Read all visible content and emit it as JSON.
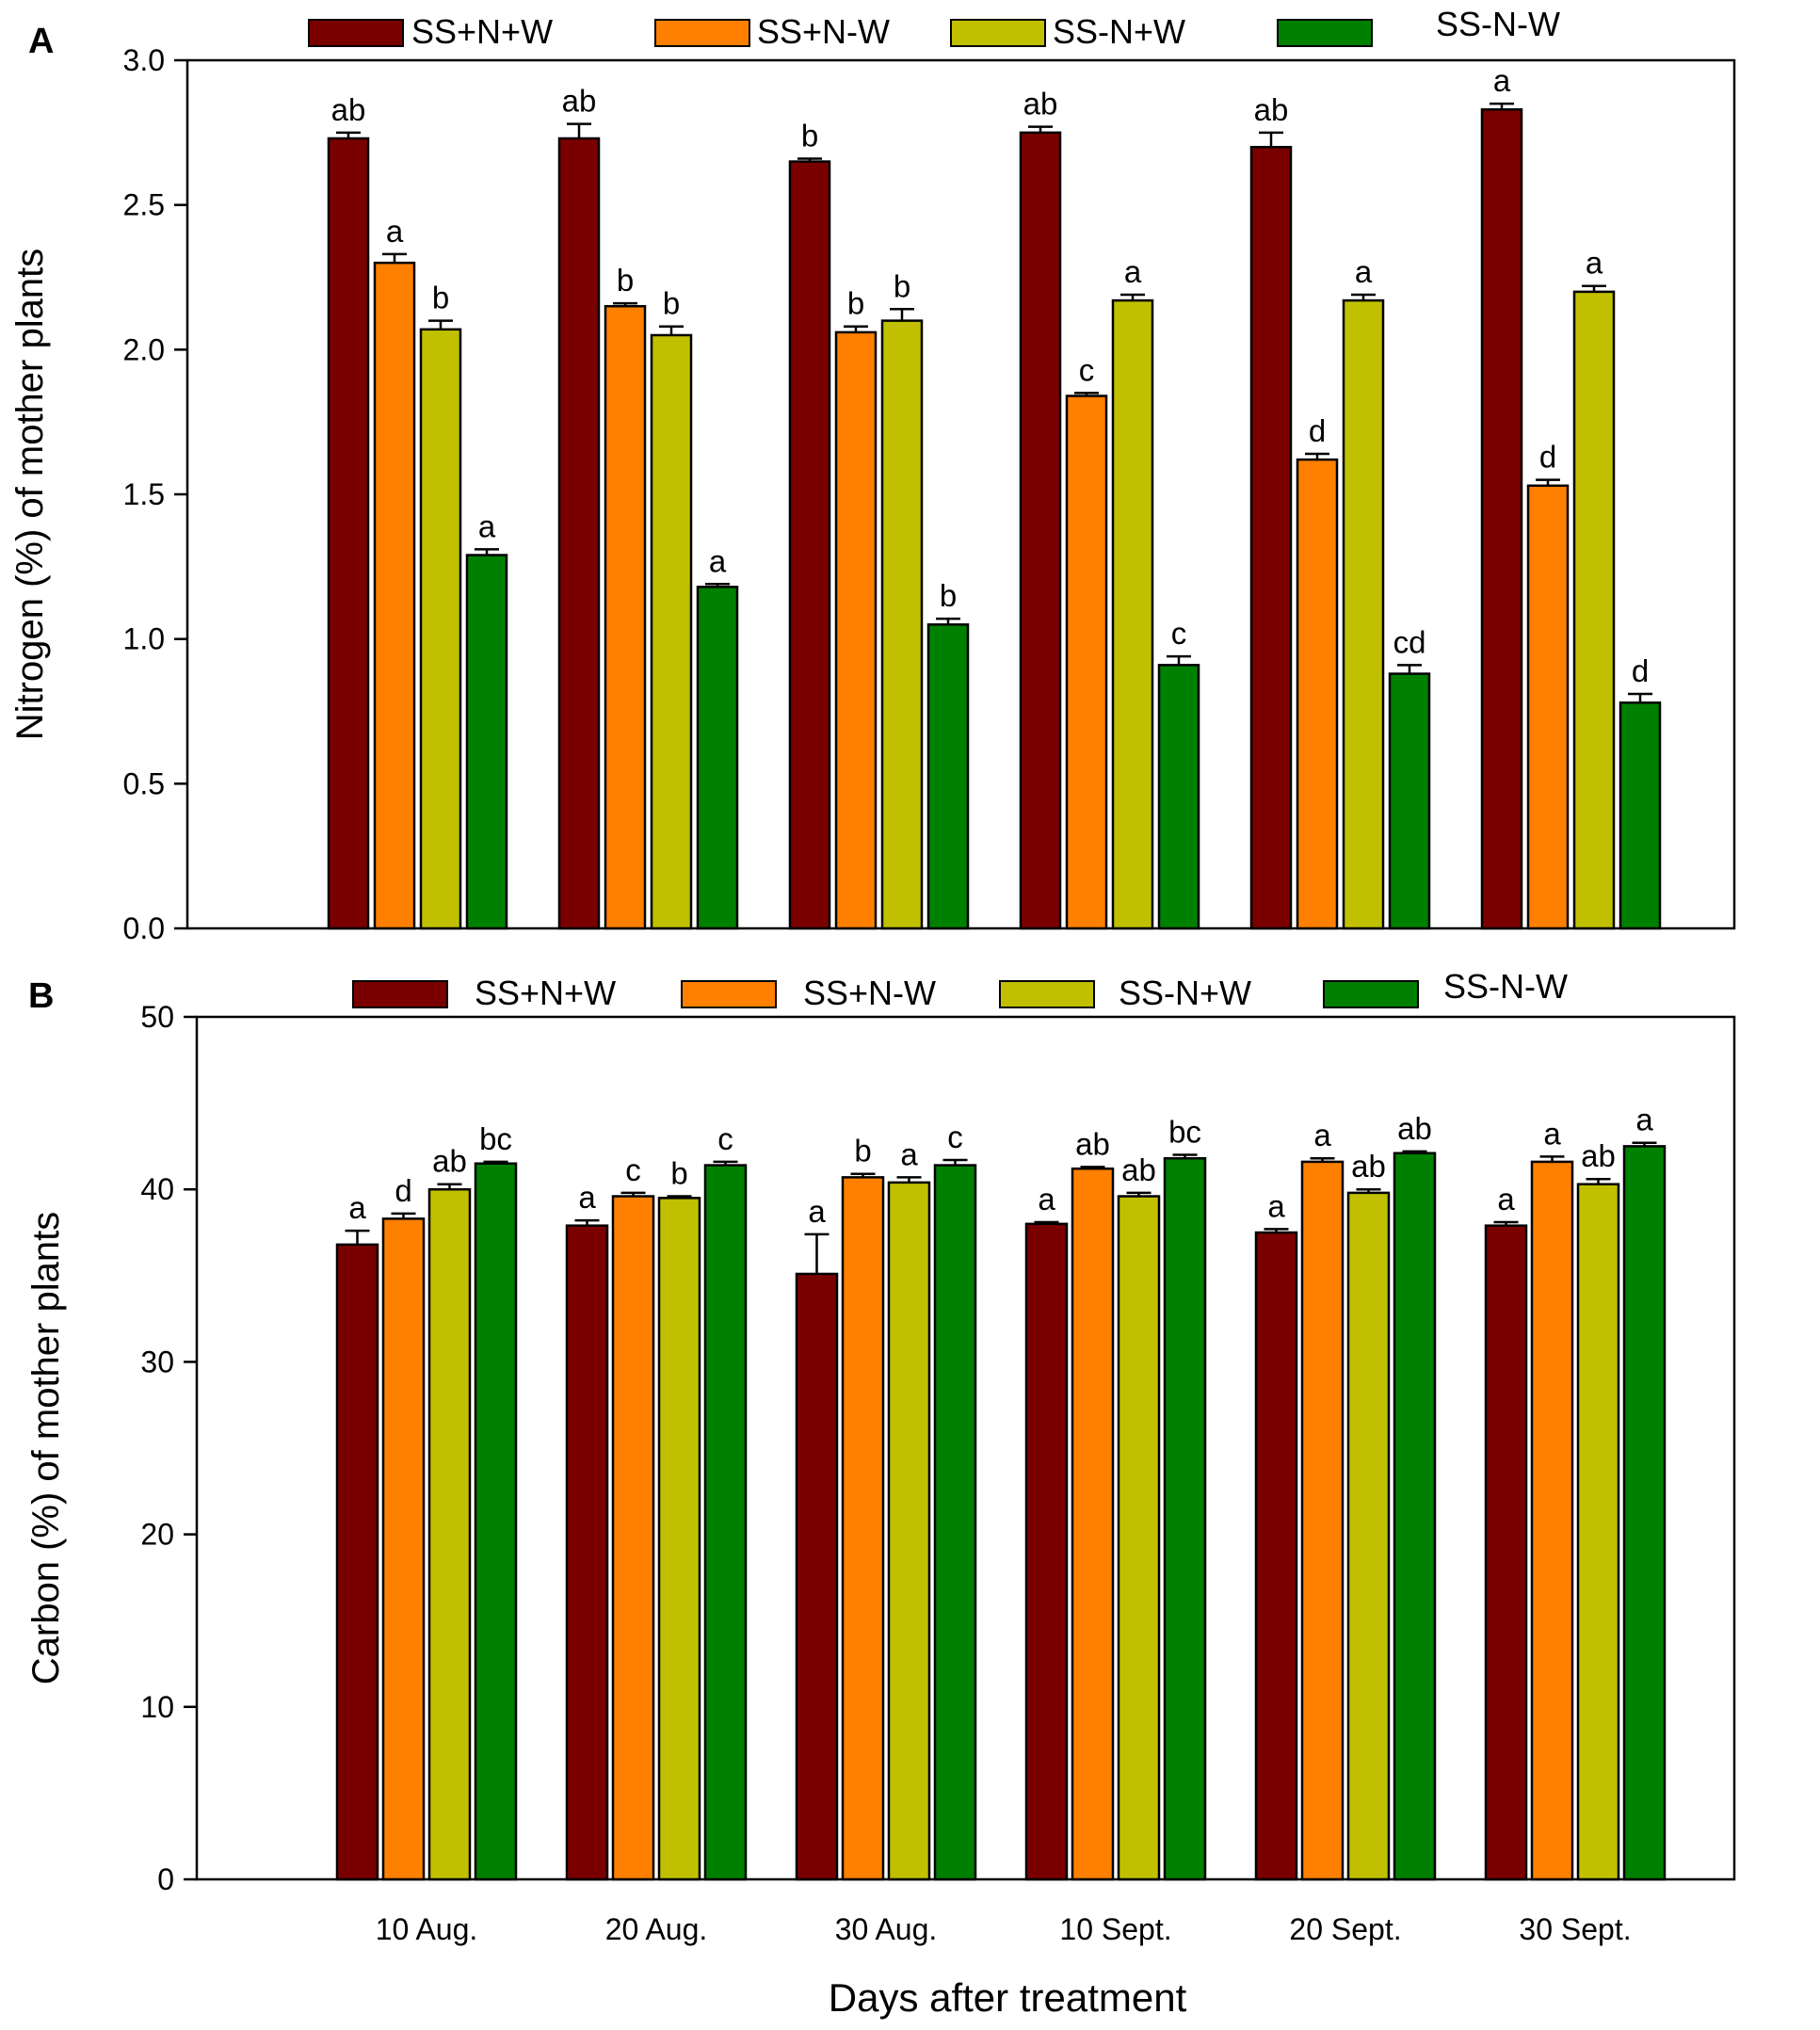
{
  "x_title": "Days after treatment",
  "categories": [
    "10 Aug.",
    "20 Aug.",
    "30 Aug.",
    "10 Sept.",
    "20 Sept.",
    "30 Sept."
  ],
  "series_colors": {
    "SS+N+W": "#7a0000",
    "SS+N-W": "#ff8000",
    "SS-N+W": "#c0c000",
    "SS-N-W": "#008000"
  },
  "chart_data": [
    {
      "panel": "A",
      "type": "bar",
      "ylabel": "Nitrogen (%) of mother plants",
      "ylim": [
        0,
        3.0
      ],
      "yticks": [
        "0.0",
        "0.5",
        "1.0",
        "1.5",
        "2.0",
        "2.5",
        "3.0"
      ],
      "legend": [
        "SS+N+W",
        "SS+N-W",
        "SS-N+W",
        "SS-N-W"
      ],
      "legend_position": "top",
      "series": [
        {
          "name": "SS+N+W",
          "values": [
            2.73,
            2.73,
            2.65,
            2.75,
            2.7,
            2.83
          ],
          "errors": [
            0.02,
            0.05,
            0.01,
            0.02,
            0.05,
            0.02
          ],
          "labels": [
            "ab",
            "ab",
            "b",
            "ab",
            "ab",
            "a"
          ]
        },
        {
          "name": "SS+N-W",
          "values": [
            2.3,
            2.15,
            2.06,
            1.84,
            1.62,
            1.53
          ],
          "errors": [
            0.03,
            0.01,
            0.02,
            0.01,
            0.02,
            0.02
          ],
          "labels": [
            "a",
            "b",
            "b",
            "c",
            "d",
            "d"
          ]
        },
        {
          "name": "SS-N+W",
          "values": [
            2.07,
            2.05,
            2.1,
            2.17,
            2.17,
            2.2
          ],
          "errors": [
            0.03,
            0.03,
            0.04,
            0.02,
            0.02,
            0.02
          ],
          "labels": [
            "b",
            "b",
            "b",
            "a",
            "a",
            "a"
          ]
        },
        {
          "name": "SS-N-W",
          "values": [
            1.29,
            1.18,
            1.05,
            0.91,
            0.88,
            0.78
          ],
          "errors": [
            0.02,
            0.01,
            0.02,
            0.03,
            0.03,
            0.03
          ],
          "labels": [
            "a",
            "a",
            "b",
            "c",
            "cd",
            "d"
          ]
        }
      ]
    },
    {
      "panel": "B",
      "type": "bar",
      "ylabel": "Carbon (%) of mother plants",
      "ylim": [
        0,
        50
      ],
      "yticks": [
        "0",
        "10",
        "20",
        "30",
        "40",
        "50"
      ],
      "legend": [
        "SS+N+W",
        "SS+N-W",
        "SS-N+W",
        "SS-N-W"
      ],
      "legend_position": "top",
      "series": [
        {
          "name": "SS+N+W",
          "values": [
            36.8,
            37.9,
            35.1,
            38.0,
            37.5,
            37.9
          ],
          "errors": [
            0.8,
            0.3,
            2.3,
            0.1,
            0.2,
            0.2
          ],
          "labels": [
            "a",
            "a",
            "a",
            "a",
            "a",
            "a"
          ]
        },
        {
          "name": "SS+N-W",
          "values": [
            38.3,
            39.6,
            40.7,
            41.2,
            41.6,
            41.6
          ],
          "errors": [
            0.3,
            0.2,
            0.2,
            0.1,
            0.2,
            0.3
          ],
          "labels": [
            "d",
            "c",
            "b",
            "ab",
            "a",
            "a"
          ]
        },
        {
          "name": "SS-N+W",
          "values": [
            40.0,
            39.5,
            40.4,
            39.6,
            39.8,
            40.3
          ],
          "errors": [
            0.3,
            0.1,
            0.3,
            0.2,
            0.2,
            0.3
          ],
          "labels": [
            "ab",
            "b",
            "a",
            "ab",
            "ab",
            "ab"
          ]
        },
        {
          "name": "SS-N-W",
          "values": [
            41.5,
            41.4,
            41.4,
            41.8,
            42.1,
            42.5
          ],
          "errors": [
            0.1,
            0.2,
            0.3,
            0.2,
            0.1,
            0.2
          ],
          "labels": [
            "bc",
            "c",
            "c",
            "bc",
            "ab",
            "a"
          ]
        }
      ]
    }
  ]
}
